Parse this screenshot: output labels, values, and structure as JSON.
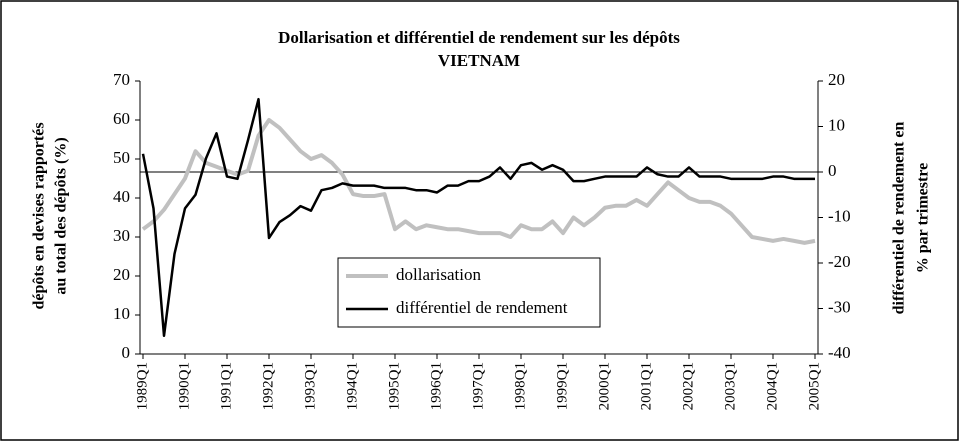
{
  "chart_data": {
    "type": "line",
    "title": "Dollarisation et différentiel de rendement sur les dépôts",
    "subtitle": "VIETNAM",
    "ylabel": [
      "dépôts en devises rapportés",
      "au total des dépôts (%)"
    ],
    "y2label": [
      "différentiel de rendement en",
      "% par trimestre"
    ],
    "categories": [
      "1989Q1",
      null,
      null,
      null,
      "1990Q1",
      null,
      null,
      null,
      "1991Q1",
      null,
      null,
      null,
      "1992Q1",
      null,
      null,
      null,
      "1993Q1",
      null,
      null,
      null,
      "1994Q1",
      null,
      null,
      null,
      "1995Q1",
      null,
      null,
      null,
      "1996Q1",
      null,
      null,
      null,
      "1997Q1",
      null,
      null,
      null,
      "1998Q1",
      null,
      null,
      null,
      "1999Q1",
      null,
      null,
      null,
      "2000Q1",
      null,
      null,
      null,
      "2001Q1",
      null,
      null,
      null,
      "2002Q1",
      null,
      null,
      null,
      "2003Q1",
      null,
      null,
      null,
      "2004Q1",
      null,
      null,
      null,
      "2005Q1"
    ],
    "series": [
      {
        "name": "dollarisation",
        "color": "#c0c0c0",
        "axis": "y",
        "values": [
          32,
          34,
          37,
          41,
          45,
          52,
          49,
          48,
          47,
          46,
          47,
          56,
          60,
          58,
          55,
          52,
          50,
          51,
          49,
          46,
          41,
          40.5,
          40.5,
          41,
          32,
          34,
          32,
          33,
          32.5,
          32,
          32,
          31.5,
          31,
          31,
          31,
          30,
          33,
          32,
          32,
          34,
          31,
          35,
          33,
          35,
          37.5,
          38,
          38,
          39.5,
          38,
          41,
          44,
          42,
          40,
          39,
          39,
          38,
          36,
          33,
          30,
          29.5,
          29,
          29.5,
          29,
          28.5,
          29
        ]
      },
      {
        "name": "différentiel de rendement",
        "color": "#000000",
        "axis": "y2",
        "values": [
          4,
          -8,
          -36,
          -18,
          -8,
          -5,
          3,
          8.5,
          -1,
          -1.5,
          7,
          16,
          -14.5,
          -11,
          -9.5,
          -7.5,
          -8.5,
          -4,
          -3.5,
          -2.5,
          -3,
          -3,
          -3,
          -3.5,
          -3.5,
          -3.5,
          -4,
          -4,
          -4.5,
          -3,
          -3,
          -2,
          -2,
          -1,
          1,
          -1.5,
          1.5,
          2,
          0.5,
          1.5,
          0.5,
          -2,
          -2,
          -1.5,
          -1,
          -1,
          -1,
          -1,
          1,
          -0.5,
          -1,
          -1,
          1,
          -1,
          -1,
          -1,
          -1.5,
          -1.5,
          -1.5,
          -1.5,
          -1,
          -1,
          -1.5,
          -1.5,
          -1.5
        ]
      }
    ],
    "ylim": [
      0,
      70
    ],
    "yticks": [
      0,
      10,
      20,
      30,
      40,
      50,
      60,
      70
    ],
    "y2lim": [
      -40,
      20
    ],
    "y2ticks": [
      -40,
      -30,
      -20,
      -10,
      0,
      10,
      20
    ],
    "reference_line": {
      "value": 0,
      "axis": "y2"
    },
    "legend": "center",
    "grid": false
  }
}
